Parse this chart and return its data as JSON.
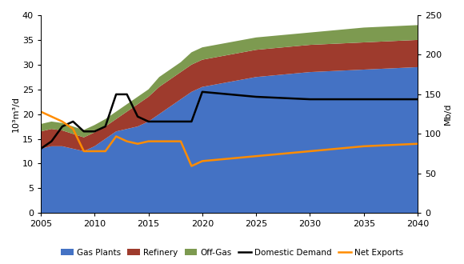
{
  "years": [
    2005,
    2006,
    2007,
    2008,
    2009,
    2010,
    2011,
    2012,
    2013,
    2014,
    2015,
    2016,
    2017,
    2018,
    2019,
    2020,
    2025,
    2030,
    2035,
    2040
  ],
  "gas_plants": [
    13.0,
    13.5,
    13.5,
    13.0,
    12.5,
    13.5,
    15.0,
    16.5,
    17.0,
    17.5,
    18.5,
    20.0,
    21.5,
    23.0,
    24.5,
    25.5,
    27.5,
    28.5,
    29.0,
    29.5
  ],
  "refinery": [
    3.5,
    3.5,
    3.2,
    3.0,
    2.8,
    2.8,
    2.5,
    2.5,
    3.5,
    4.5,
    5.0,
    5.5,
    5.5,
    5.5,
    5.5,
    5.5,
    5.5,
    5.5,
    5.5,
    5.5
  ],
  "offgas": [
    1.5,
    1.5,
    1.5,
    1.5,
    1.5,
    1.5,
    1.5,
    1.5,
    1.5,
    1.5,
    1.5,
    2.0,
    2.0,
    2.0,
    2.5,
    2.5,
    2.5,
    2.5,
    3.0,
    3.0
  ],
  "domestic_demand": [
    13.0,
    14.5,
    17.5,
    18.5,
    16.5,
    16.5,
    17.5,
    24.0,
    24.0,
    19.5,
    18.5,
    18.5,
    18.5,
    18.5,
    18.5,
    24.5,
    23.5,
    23.0,
    23.0,
    23.0
  ],
  "net_exports": [
    20.5,
    19.5,
    18.5,
    17.0,
    12.5,
    12.5,
    12.5,
    15.5,
    14.5,
    14.0,
    14.5,
    14.5,
    14.5,
    14.5,
    9.5,
    10.5,
    11.5,
    12.5,
    13.5,
    14.0
  ],
  "gas_plants_color": "#4472C4",
  "refinery_color": "#9E3B2D",
  "offgas_color": "#7D9A50",
  "domestic_demand_color": "#000000",
  "net_exports_color": "#FF8C00",
  "ylabel_left": "10³m³/d",
  "ylabel_right": "Mb/d",
  "ylim_left": [
    0,
    40
  ],
  "ylim_right": [
    0,
    250
  ],
  "xlim": [
    2005,
    2040
  ],
  "xticks": [
    2005,
    2010,
    2015,
    2020,
    2025,
    2030,
    2035,
    2040
  ],
  "yticks_left": [
    0,
    5,
    10,
    15,
    20,
    25,
    30,
    35,
    40
  ],
  "yticks_right": [
    0,
    50,
    100,
    150,
    200,
    250
  ],
  "legend_labels": [
    "Gas Plants",
    "Refinery",
    "Off-Gas",
    "Domestic Demand",
    "Net Exports"
  ]
}
